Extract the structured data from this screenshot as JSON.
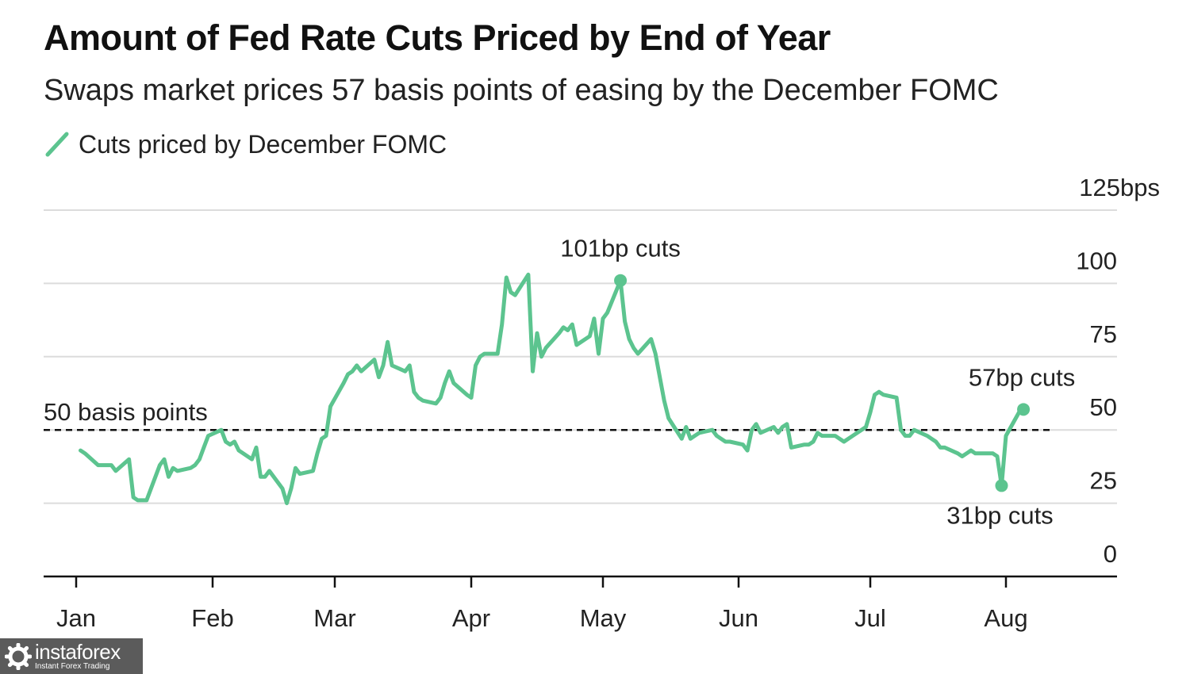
{
  "chart_data": {
    "type": "line",
    "title": "Amount of Fed Rate Cuts Priced by End of Year",
    "subtitle": "Swaps market prices 57 basis points of easing by the December FOMC",
    "series": [
      {
        "name": "Cuts priced by December FOMC",
        "color": "#5cc48f",
        "points": [
          [
            "2025-01-02",
            43
          ],
          [
            "2025-01-03",
            42
          ],
          [
            "2025-01-06",
            38
          ],
          [
            "2025-01-07",
            38
          ],
          [
            "2025-01-08",
            38
          ],
          [
            "2025-01-09",
            38
          ],
          [
            "2025-01-10",
            36
          ],
          [
            "2025-01-13",
            40
          ],
          [
            "2025-01-14",
            27
          ],
          [
            "2025-01-15",
            26
          ],
          [
            "2025-01-16",
            26
          ],
          [
            "2025-01-17",
            26
          ],
          [
            "2025-01-20",
            38
          ],
          [
            "2025-01-21",
            40
          ],
          [
            "2025-01-22",
            34
          ],
          [
            "2025-01-23",
            37
          ],
          [
            "2025-01-24",
            36
          ],
          [
            "2025-01-27",
            37
          ],
          [
            "2025-01-28",
            38
          ],
          [
            "2025-01-29",
            40
          ],
          [
            "2025-01-30",
            44
          ],
          [
            "2025-01-31",
            48
          ],
          [
            "2025-02-03",
            50
          ],
          [
            "2025-02-04",
            46
          ],
          [
            "2025-02-05",
            45
          ],
          [
            "2025-02-06",
            46
          ],
          [
            "2025-02-07",
            43
          ],
          [
            "2025-02-10",
            40
          ],
          [
            "2025-02-11",
            44
          ],
          [
            "2025-02-12",
            34
          ],
          [
            "2025-02-13",
            34
          ],
          [
            "2025-02-14",
            36
          ],
          [
            "2025-02-17",
            30
          ],
          [
            "2025-02-18",
            25
          ],
          [
            "2025-02-19",
            30
          ],
          [
            "2025-02-20",
            37
          ],
          [
            "2025-02-21",
            35
          ],
          [
            "2025-02-24",
            36
          ],
          [
            "2025-02-25",
            42
          ],
          [
            "2025-02-26",
            47
          ],
          [
            "2025-02-27",
            48
          ],
          [
            "2025-02-28",
            58
          ],
          [
            "2025-03-03",
            66
          ],
          [
            "2025-03-04",
            69
          ],
          [
            "2025-03-05",
            70
          ],
          [
            "2025-03-06",
            72
          ],
          [
            "2025-03-07",
            70
          ],
          [
            "2025-03-10",
            74
          ],
          [
            "2025-03-11",
            68
          ],
          [
            "2025-03-12",
            72
          ],
          [
            "2025-03-13",
            80
          ],
          [
            "2025-03-14",
            72
          ],
          [
            "2025-03-17",
            70
          ],
          [
            "2025-03-18",
            72
          ],
          [
            "2025-03-19",
            63
          ],
          [
            "2025-03-20",
            61
          ],
          [
            "2025-03-21",
            60
          ],
          [
            "2025-03-24",
            59
          ],
          [
            "2025-03-25",
            61
          ],
          [
            "2025-03-26",
            66
          ],
          [
            "2025-03-27",
            70
          ],
          [
            "2025-03-28",
            66
          ],
          [
            "2025-03-31",
            62
          ],
          [
            "2025-04-01",
            61
          ],
          [
            "2025-04-02",
            72
          ],
          [
            "2025-04-03",
            75
          ],
          [
            "2025-04-04",
            76
          ],
          [
            "2025-04-07",
            76
          ],
          [
            "2025-04-08",
            86
          ],
          [
            "2025-04-09",
            102
          ],
          [
            "2025-04-10",
            97
          ],
          [
            "2025-04-11",
            96
          ],
          [
            "2025-04-14",
            103
          ],
          [
            "2025-04-15",
            70
          ],
          [
            "2025-04-16",
            83
          ],
          [
            "2025-04-17",
            75
          ],
          [
            "2025-04-18",
            78
          ],
          [
            "2025-04-21",
            83
          ],
          [
            "2025-04-22",
            85
          ],
          [
            "2025-04-23",
            84
          ],
          [
            "2025-04-24",
            86
          ],
          [
            "2025-04-25",
            79
          ],
          [
            "2025-04-28",
            82
          ],
          [
            "2025-04-29",
            88
          ],
          [
            "2025-04-30",
            76
          ],
          [
            "2025-05-01",
            88
          ],
          [
            "2025-05-02",
            90
          ],
          [
            "2025-05-05",
            101
          ],
          [
            "2025-05-06",
            87
          ],
          [
            "2025-05-07",
            81
          ],
          [
            "2025-05-08",
            78
          ],
          [
            "2025-05-09",
            76
          ],
          [
            "2025-05-12",
            81
          ],
          [
            "2025-05-13",
            76
          ],
          [
            "2025-05-14",
            68
          ],
          [
            "2025-05-15",
            60
          ],
          [
            "2025-05-16",
            54
          ],
          [
            "2025-05-19",
            47
          ],
          [
            "2025-05-20",
            51
          ],
          [
            "2025-05-21",
            47
          ],
          [
            "2025-05-22",
            48
          ],
          [
            "2025-05-23",
            49
          ],
          [
            "2025-05-26",
            50
          ],
          [
            "2025-05-27",
            48
          ],
          [
            "2025-05-28",
            47
          ],
          [
            "2025-05-29",
            46
          ],
          [
            "2025-05-30",
            46
          ],
          [
            "2025-06-02",
            45
          ],
          [
            "2025-06-03",
            43
          ],
          [
            "2025-06-04",
            50
          ],
          [
            "2025-06-05",
            52
          ],
          [
            "2025-06-06",
            49
          ],
          [
            "2025-06-09",
            51
          ],
          [
            "2025-06-10",
            49
          ],
          [
            "2025-06-11",
            51
          ],
          [
            "2025-06-12",
            52
          ],
          [
            "2025-06-13",
            44
          ],
          [
            "2025-06-16",
            45
          ],
          [
            "2025-06-17",
            45
          ],
          [
            "2025-06-18",
            46
          ],
          [
            "2025-06-19",
            49
          ],
          [
            "2025-06-20",
            48
          ],
          [
            "2025-06-23",
            48
          ],
          [
            "2025-06-24",
            47
          ],
          [
            "2025-06-25",
            46
          ],
          [
            "2025-06-26",
            47
          ],
          [
            "2025-06-27",
            48
          ],
          [
            "2025-06-30",
            51
          ],
          [
            "2025-07-01",
            56
          ],
          [
            "2025-07-02",
            62
          ],
          [
            "2025-07-03",
            63
          ],
          [
            "2025-07-04",
            62
          ],
          [
            "2025-07-07",
            61
          ],
          [
            "2025-07-08",
            50
          ],
          [
            "2025-07-09",
            48
          ],
          [
            "2025-07-10",
            48
          ],
          [
            "2025-07-11",
            50
          ],
          [
            "2025-07-14",
            48
          ],
          [
            "2025-07-15",
            47
          ],
          [
            "2025-07-16",
            46
          ],
          [
            "2025-07-17",
            44
          ],
          [
            "2025-07-18",
            44
          ],
          [
            "2025-07-21",
            42
          ],
          [
            "2025-07-22",
            41
          ],
          [
            "2025-07-23",
            42
          ],
          [
            "2025-07-24",
            43
          ],
          [
            "2025-07-25",
            42
          ],
          [
            "2025-07-28",
            42
          ],
          [
            "2025-07-29",
            42
          ],
          [
            "2025-07-30",
            41
          ],
          [
            "2025-07-31",
            31
          ],
          [
            "2025-08-01",
            48
          ],
          [
            "2025-08-04",
            56
          ],
          [
            "2025-08-05",
            57
          ]
        ]
      }
    ],
    "reference_line": {
      "value": 50,
      "label": "50 basis points",
      "style": "dashed"
    },
    "annotations": [
      {
        "date": "2025-05-05",
        "value": 101,
        "label": "101bp cuts",
        "anchor": "above"
      },
      {
        "date": "2025-07-31",
        "value": 31,
        "label": "31bp cuts",
        "anchor": "below"
      },
      {
        "date": "2025-08-05",
        "value": 57,
        "label": "57bp cuts",
        "anchor": "above"
      }
    ],
    "x_axis": {
      "type": "date",
      "ticks": [
        {
          "date": "2025-01-01",
          "label": "Jan"
        },
        {
          "date": "2025-02-01",
          "label": "Feb"
        },
        {
          "date": "2025-03-01",
          "label": "Mar"
        },
        {
          "date": "2025-04-01",
          "label": "Apr"
        },
        {
          "date": "2025-05-01",
          "label": "May"
        },
        {
          "date": "2025-06-01",
          "label": "Jun"
        },
        {
          "date": "2025-07-01",
          "label": "Jul"
        },
        {
          "date": "2025-08-01",
          "label": "Aug"
        }
      ]
    },
    "y_axis": {
      "position": "right",
      "ylim": [
        0,
        125
      ],
      "ticks": [
        {
          "value": 0,
          "label": "0"
        },
        {
          "value": 25,
          "label": "25"
        },
        {
          "value": 50,
          "label": "50"
        },
        {
          "value": 75,
          "label": "75"
        },
        {
          "value": 100,
          "label": "100"
        },
        {
          "value": 125,
          "label": "125bps"
        }
      ]
    },
    "grid": true,
    "legend_position": "top-left"
  },
  "watermark": {
    "brand": "instaforex",
    "tagline": "Instant Forex Trading"
  }
}
